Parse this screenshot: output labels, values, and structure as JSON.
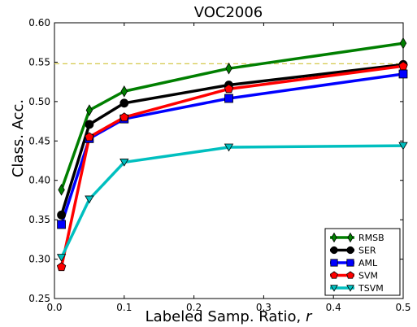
{
  "chart_data": {
    "type": "line",
    "title": "VOC2006",
    "xlabel": "Labeled Samp. Ratio, ",
    "xlabel_var": "r",
    "ylabel": "Class. Acc.",
    "xlim": [
      0,
      0.5
    ],
    "ylim": [
      0.25,
      0.6
    ],
    "xticks": [
      0.0,
      0.1,
      0.2,
      0.3,
      0.4,
      0.5
    ],
    "xtick_labels": [
      "0.0",
      "0.1",
      "0.2",
      "0.3",
      "0.4",
      "0.5"
    ],
    "yticks": [
      0.25,
      0.3,
      0.35,
      0.4,
      0.45,
      0.5,
      0.55,
      0.6
    ],
    "ytick_labels": [
      "0.25",
      "0.30",
      "0.35",
      "0.40",
      "0.45",
      "0.50",
      "0.55",
      "0.60"
    ],
    "reference_line": {
      "y": 0.548,
      "color": "#d4c84a",
      "style": "dashed"
    },
    "x": [
      0.01,
      0.05,
      0.1,
      0.25,
      0.5
    ],
    "legend_position": "lower-right",
    "series": [
      {
        "name": "RMSB",
        "color": "#007f00",
        "marker": "diamond",
        "values": [
          0.388,
          0.489,
          0.513,
          0.542,
          0.574
        ]
      },
      {
        "name": "SER",
        "color": "#000000",
        "marker": "circle",
        "values": [
          0.356,
          0.471,
          0.498,
          0.521,
          0.547
        ]
      },
      {
        "name": "AML",
        "color": "#0000ff",
        "marker": "square",
        "values": [
          0.344,
          0.453,
          0.478,
          0.504,
          0.535
        ]
      },
      {
        "name": "SVM",
        "color": "#ff0000",
        "marker": "pentagon",
        "values": [
          0.29,
          0.455,
          0.48,
          0.516,
          0.545
        ]
      },
      {
        "name": "TSVM",
        "color": "#00bfbf",
        "marker": "triangle-down",
        "values": [
          0.302,
          0.376,
          0.423,
          0.442,
          0.444
        ]
      }
    ]
  }
}
